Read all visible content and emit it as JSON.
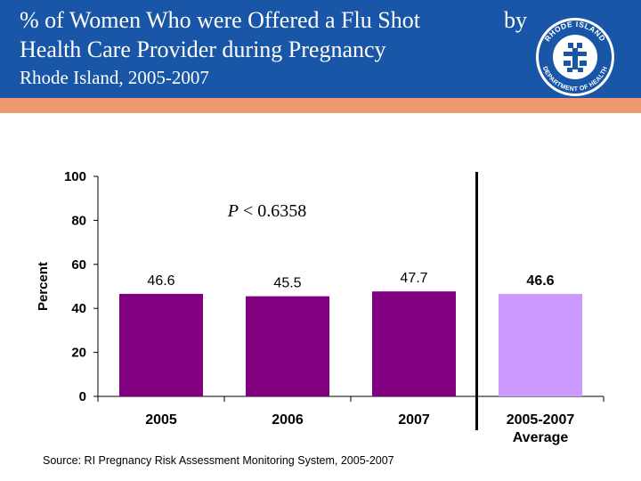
{
  "header": {
    "title_line1": "% of Women Who were Offered a Flu Shot",
    "title_by": "by",
    "title_line2": "Health Care Provider during Pregnancy",
    "subtitle": "Rhode Island, 2005-2007",
    "logo_text": "RHODE ISLAND DEPARTMENT OF HEALTH"
  },
  "colors": {
    "header_bg": "#1a56a8",
    "accent_bar": "#ee9a6e",
    "bar_primary": "#800080",
    "bar_average": "#cc99ff"
  },
  "chart_data": {
    "type": "bar",
    "categories": [
      "2005",
      "2006",
      "2007",
      "2005-2007 Average"
    ],
    "category_lines": [
      [
        "2005"
      ],
      [
        "2006"
      ],
      [
        "2007"
      ],
      [
        "2005-2007",
        "Average"
      ]
    ],
    "values": [
      46.6,
      45.5,
      47.7,
      46.6
    ],
    "data_labels": [
      "46.6",
      "45.5",
      "47.7",
      "46.6"
    ],
    "ylabel": "Percent",
    "xlabel": "",
    "ylim": [
      0,
      100
    ],
    "yticks": [
      0,
      20,
      40,
      60,
      80,
      100
    ],
    "annotation": "P < 0.6358",
    "annotation_italic_part": "P",
    "annotation_rest": " < 0.6358"
  },
  "footer": {
    "source": "Source: RI Pregnancy Risk Assessment Monitoring System, 2005-2007"
  }
}
